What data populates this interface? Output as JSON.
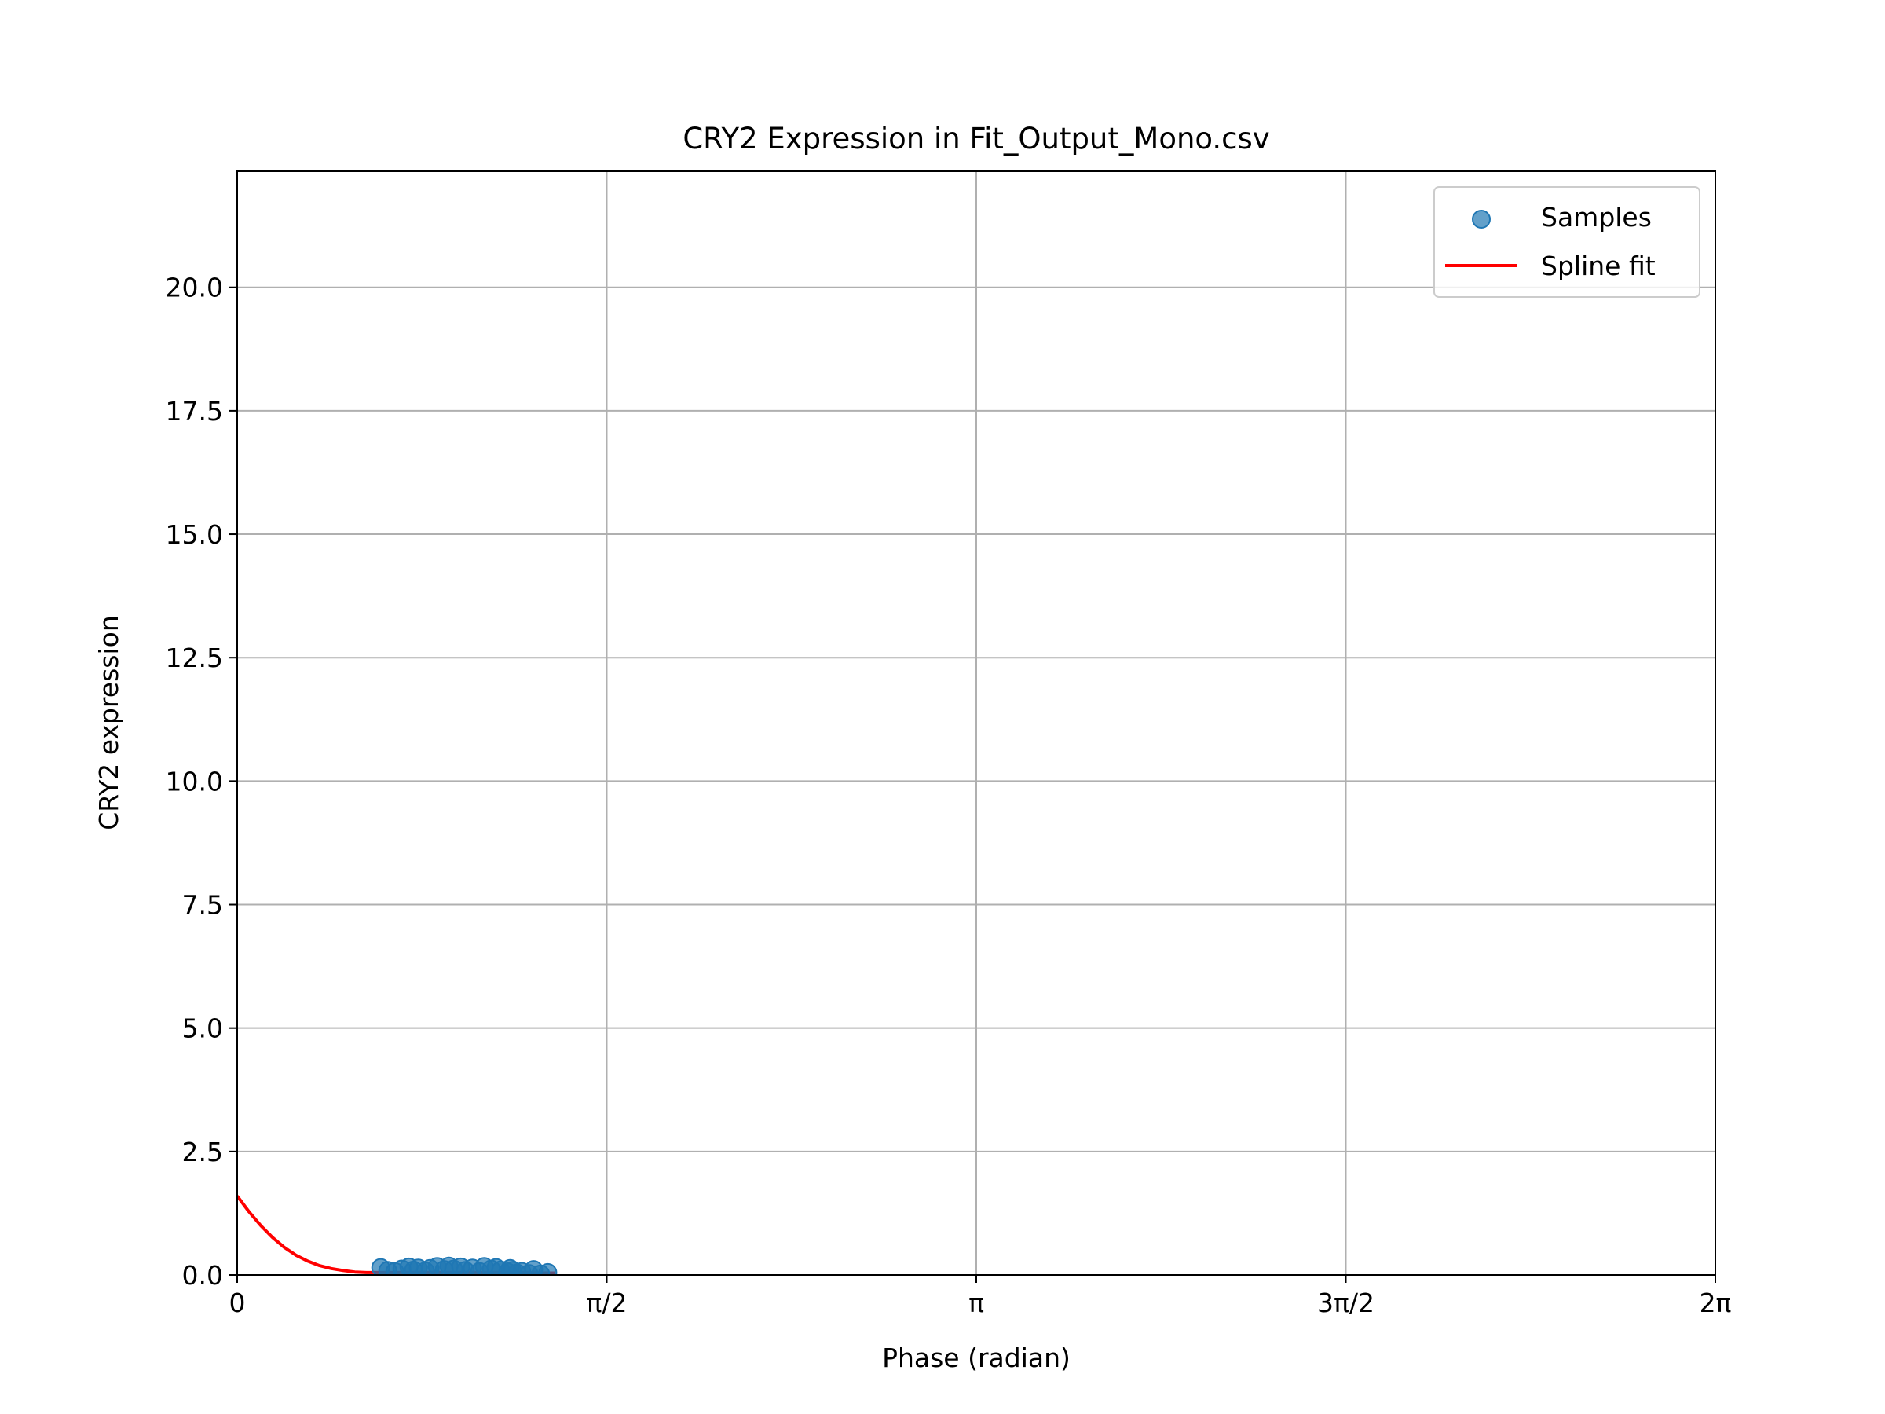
{
  "chart_data": {
    "type": "scatter",
    "title": "CRY2 Expression in Fit_Output_Mono.csv",
    "xlabel": "Phase (radian)",
    "ylabel": "CRY2 expression",
    "xlim": [
      0,
      6.283185
    ],
    "ylim": [
      0,
      22.35
    ],
    "grid": true,
    "legend_position": "upper-right",
    "x_ticks": [
      {
        "value": 0,
        "label": "0"
      },
      {
        "value": 1.570796,
        "label": "π/2"
      },
      {
        "value": 3.141593,
        "label": "π"
      },
      {
        "value": 4.712389,
        "label": "3π/2"
      },
      {
        "value": 6.283185,
        "label": "2π"
      }
    ],
    "y_ticks": [
      {
        "value": 0.0,
        "label": "0.0"
      },
      {
        "value": 2.5,
        "label": "2.5"
      },
      {
        "value": 5.0,
        "label": "5.0"
      },
      {
        "value": 7.5,
        "label": "7.5"
      },
      {
        "value": 10.0,
        "label": "10.0"
      },
      {
        "value": 12.5,
        "label": "12.5"
      },
      {
        "value": 15.0,
        "label": "15.0"
      },
      {
        "value": 17.5,
        "label": "17.5"
      },
      {
        "value": 20.0,
        "label": "20.0"
      }
    ],
    "series": [
      {
        "name": "Samples",
        "kind": "scatter",
        "color": "#1f77b4",
        "points": [
          {
            "x": 0.61,
            "y": 0.15
          },
          {
            "x": 0.64,
            "y": 0.09
          },
          {
            "x": 0.67,
            "y": 0.07
          },
          {
            "x": 0.7,
            "y": 0.12
          },
          {
            "x": 0.73,
            "y": 0.16
          },
          {
            "x": 0.75,
            "y": 0.1
          },
          {
            "x": 0.77,
            "y": 0.14
          },
          {
            "x": 0.8,
            "y": 0.08
          },
          {
            "x": 0.82,
            "y": 0.13
          },
          {
            "x": 0.85,
            "y": 0.17
          },
          {
            "x": 0.88,
            "y": 0.11
          },
          {
            "x": 0.9,
            "y": 0.18
          },
          {
            "x": 0.92,
            "y": 0.12
          },
          {
            "x": 0.95,
            "y": 0.16
          },
          {
            "x": 0.97,
            "y": 0.09
          },
          {
            "x": 1.0,
            "y": 0.14
          },
          {
            "x": 1.03,
            "y": 0.07
          },
          {
            "x": 1.05,
            "y": 0.17
          },
          {
            "x": 1.08,
            "y": 0.12
          },
          {
            "x": 1.1,
            "y": 0.15
          },
          {
            "x": 1.12,
            "y": 0.1
          },
          {
            "x": 1.15,
            "y": 0.06
          },
          {
            "x": 1.17,
            "y": 0.09
          },
          {
            "x": 1.19,
            "y": 0.04
          },
          {
            "x": 1.21,
            "y": 0.07
          },
          {
            "x": 1.24,
            "y": 0.03
          },
          {
            "x": 1.26,
            "y": 0.11
          },
          {
            "x": 1.29,
            "y": 0.02
          },
          {
            "x": 1.32,
            "y": 0.05
          },
          {
            "x": 1.16,
            "y": 0.13
          }
        ]
      },
      {
        "name": "Spline fit",
        "kind": "line",
        "color": "#ff0000",
        "points": [
          {
            "x": 0.0,
            "y": 1.6
          },
          {
            "x": 0.05,
            "y": 1.28
          },
          {
            "x": 0.1,
            "y": 1.0
          },
          {
            "x": 0.15,
            "y": 0.76
          },
          {
            "x": 0.2,
            "y": 0.56
          },
          {
            "x": 0.25,
            "y": 0.4
          },
          {
            "x": 0.3,
            "y": 0.28
          },
          {
            "x": 0.35,
            "y": 0.19
          },
          {
            "x": 0.4,
            "y": 0.13
          },
          {
            "x": 0.45,
            "y": 0.09
          },
          {
            "x": 0.5,
            "y": 0.06
          },
          {
            "x": 0.55,
            "y": 0.05
          },
          {
            "x": 0.6,
            "y": 0.05
          },
          {
            "x": 0.7,
            "y": 0.05
          },
          {
            "x": 0.8,
            "y": 0.05
          },
          {
            "x": 0.9,
            "y": 0.05
          },
          {
            "x": 1.0,
            "y": 0.05
          },
          {
            "x": 1.1,
            "y": 0.05
          },
          {
            "x": 1.2,
            "y": 0.05
          },
          {
            "x": 1.3,
            "y": 0.04
          },
          {
            "x": 1.35,
            "y": 0.04
          }
        ]
      }
    ]
  }
}
